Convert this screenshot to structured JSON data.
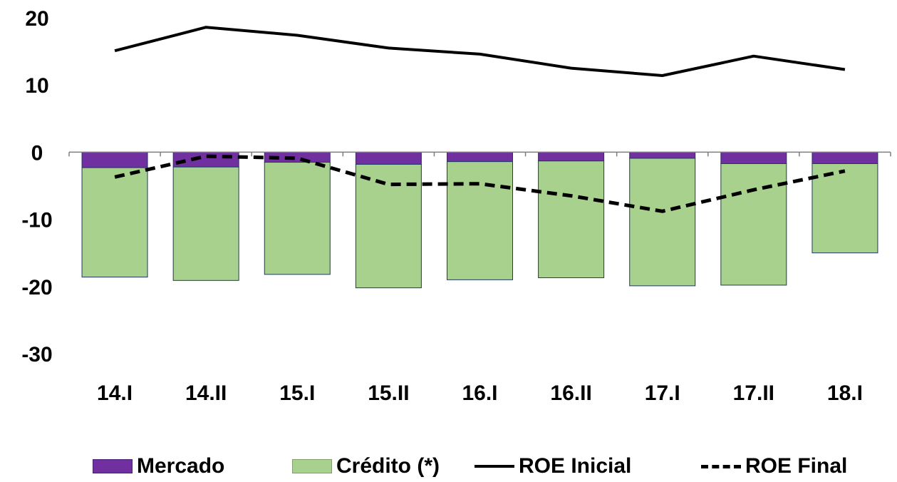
{
  "chart_data": {
    "type": "bar",
    "categories": [
      "14.I",
      "14.II",
      "15.I",
      "15.II",
      "16.I",
      "16.II",
      "17.I",
      "17.II",
      "18.I"
    ],
    "series": [
      {
        "name": "Mercado",
        "kind": "stacked-bar",
        "color": "#7030a0",
        "values": [
          -2.3,
          -2.2,
          -1.5,
          -1.8,
          -1.4,
          -1.3,
          -0.9,
          -1.7,
          -1.7
        ]
      },
      {
        "name": "Crédito (*)",
        "kind": "stacked-bar",
        "color": "#a9d18e",
        "values": [
          -16.3,
          -16.9,
          -16.7,
          -18.4,
          -17.6,
          -17.4,
          -19.0,
          -18.1,
          -13.3
        ]
      },
      {
        "name": "ROE Inicial",
        "kind": "line",
        "style": "solid",
        "color": "#000000",
        "values": [
          15.1,
          18.6,
          17.4,
          15.5,
          14.6,
          12.5,
          11.4,
          14.3,
          12.3
        ]
      },
      {
        "name": "ROE Final",
        "kind": "line",
        "style": "dashed",
        "color": "#000000",
        "values": [
          -3.7,
          -0.6,
          -0.9,
          -4.8,
          -4.7,
          -6.5,
          -8.8,
          -5.6,
          -2.8
        ]
      }
    ],
    "yticks": [
      "20",
      "10",
      "0",
      "-10",
      "-20",
      "-30"
    ],
    "ylim": [
      -30,
      20
    ],
    "title": "",
    "xlabel": "",
    "ylabel": "",
    "legend_position": "bottom",
    "grid": false
  },
  "legend": {
    "items": [
      "Mercado",
      "Crédito (*)",
      "ROE Inicial",
      "ROE Final"
    ]
  }
}
